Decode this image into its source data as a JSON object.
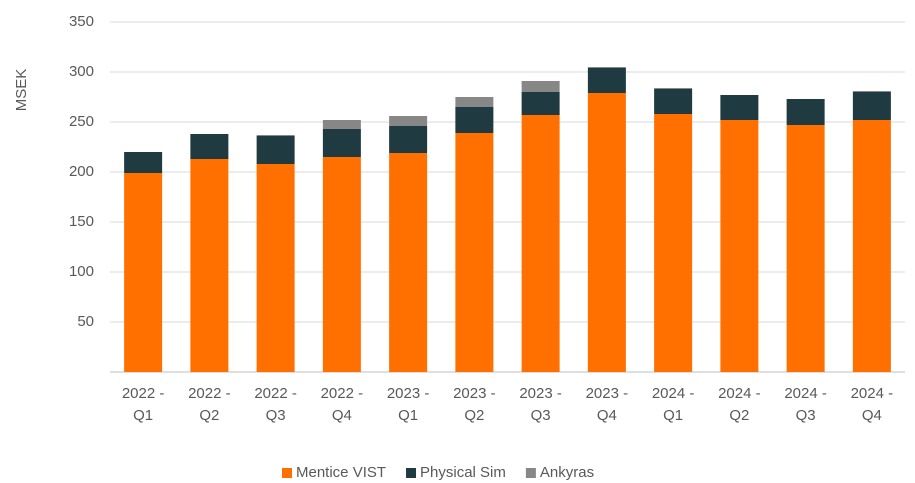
{
  "chart_data": {
    "type": "bar",
    "stacked": true,
    "y_label": "MSEK",
    "categories": [
      "2022 - Q1",
      "2022 - Q2",
      "2022 - Q3",
      "2022 - Q4",
      "2023 - Q1",
      "2023 - Q2",
      "2023 - Q3",
      "2023 - Q4",
      "2024 - Q1",
      "2024 - Q2",
      "2024 - Q3",
      "2024 - Q4"
    ],
    "series": [
      {
        "name": "Mentice VIST",
        "color": "#ff7000",
        "values": [
          199,
          213,
          208,
          215,
          219,
          239,
          257,
          279,
          258,
          252,
          247,
          252
        ]
      },
      {
        "name": "Physical Sim",
        "color": "#1f3b41",
        "values": [
          21,
          25,
          28,
          28,
          27,
          26,
          23,
          25,
          25,
          25,
          26,
          28
        ]
      },
      {
        "name": "Ankyras",
        "color": "#878787",
        "values": [
          0,
          0,
          1,
          9,
          10,
          10,
          11,
          1,
          1,
          0,
          0,
          1
        ]
      }
    ],
    "ylim": [
      0,
      350
    ],
    "yticks": [
      50,
      100,
      150,
      200,
      250,
      300,
      350
    ],
    "grid": true,
    "legend": "bottom"
  }
}
